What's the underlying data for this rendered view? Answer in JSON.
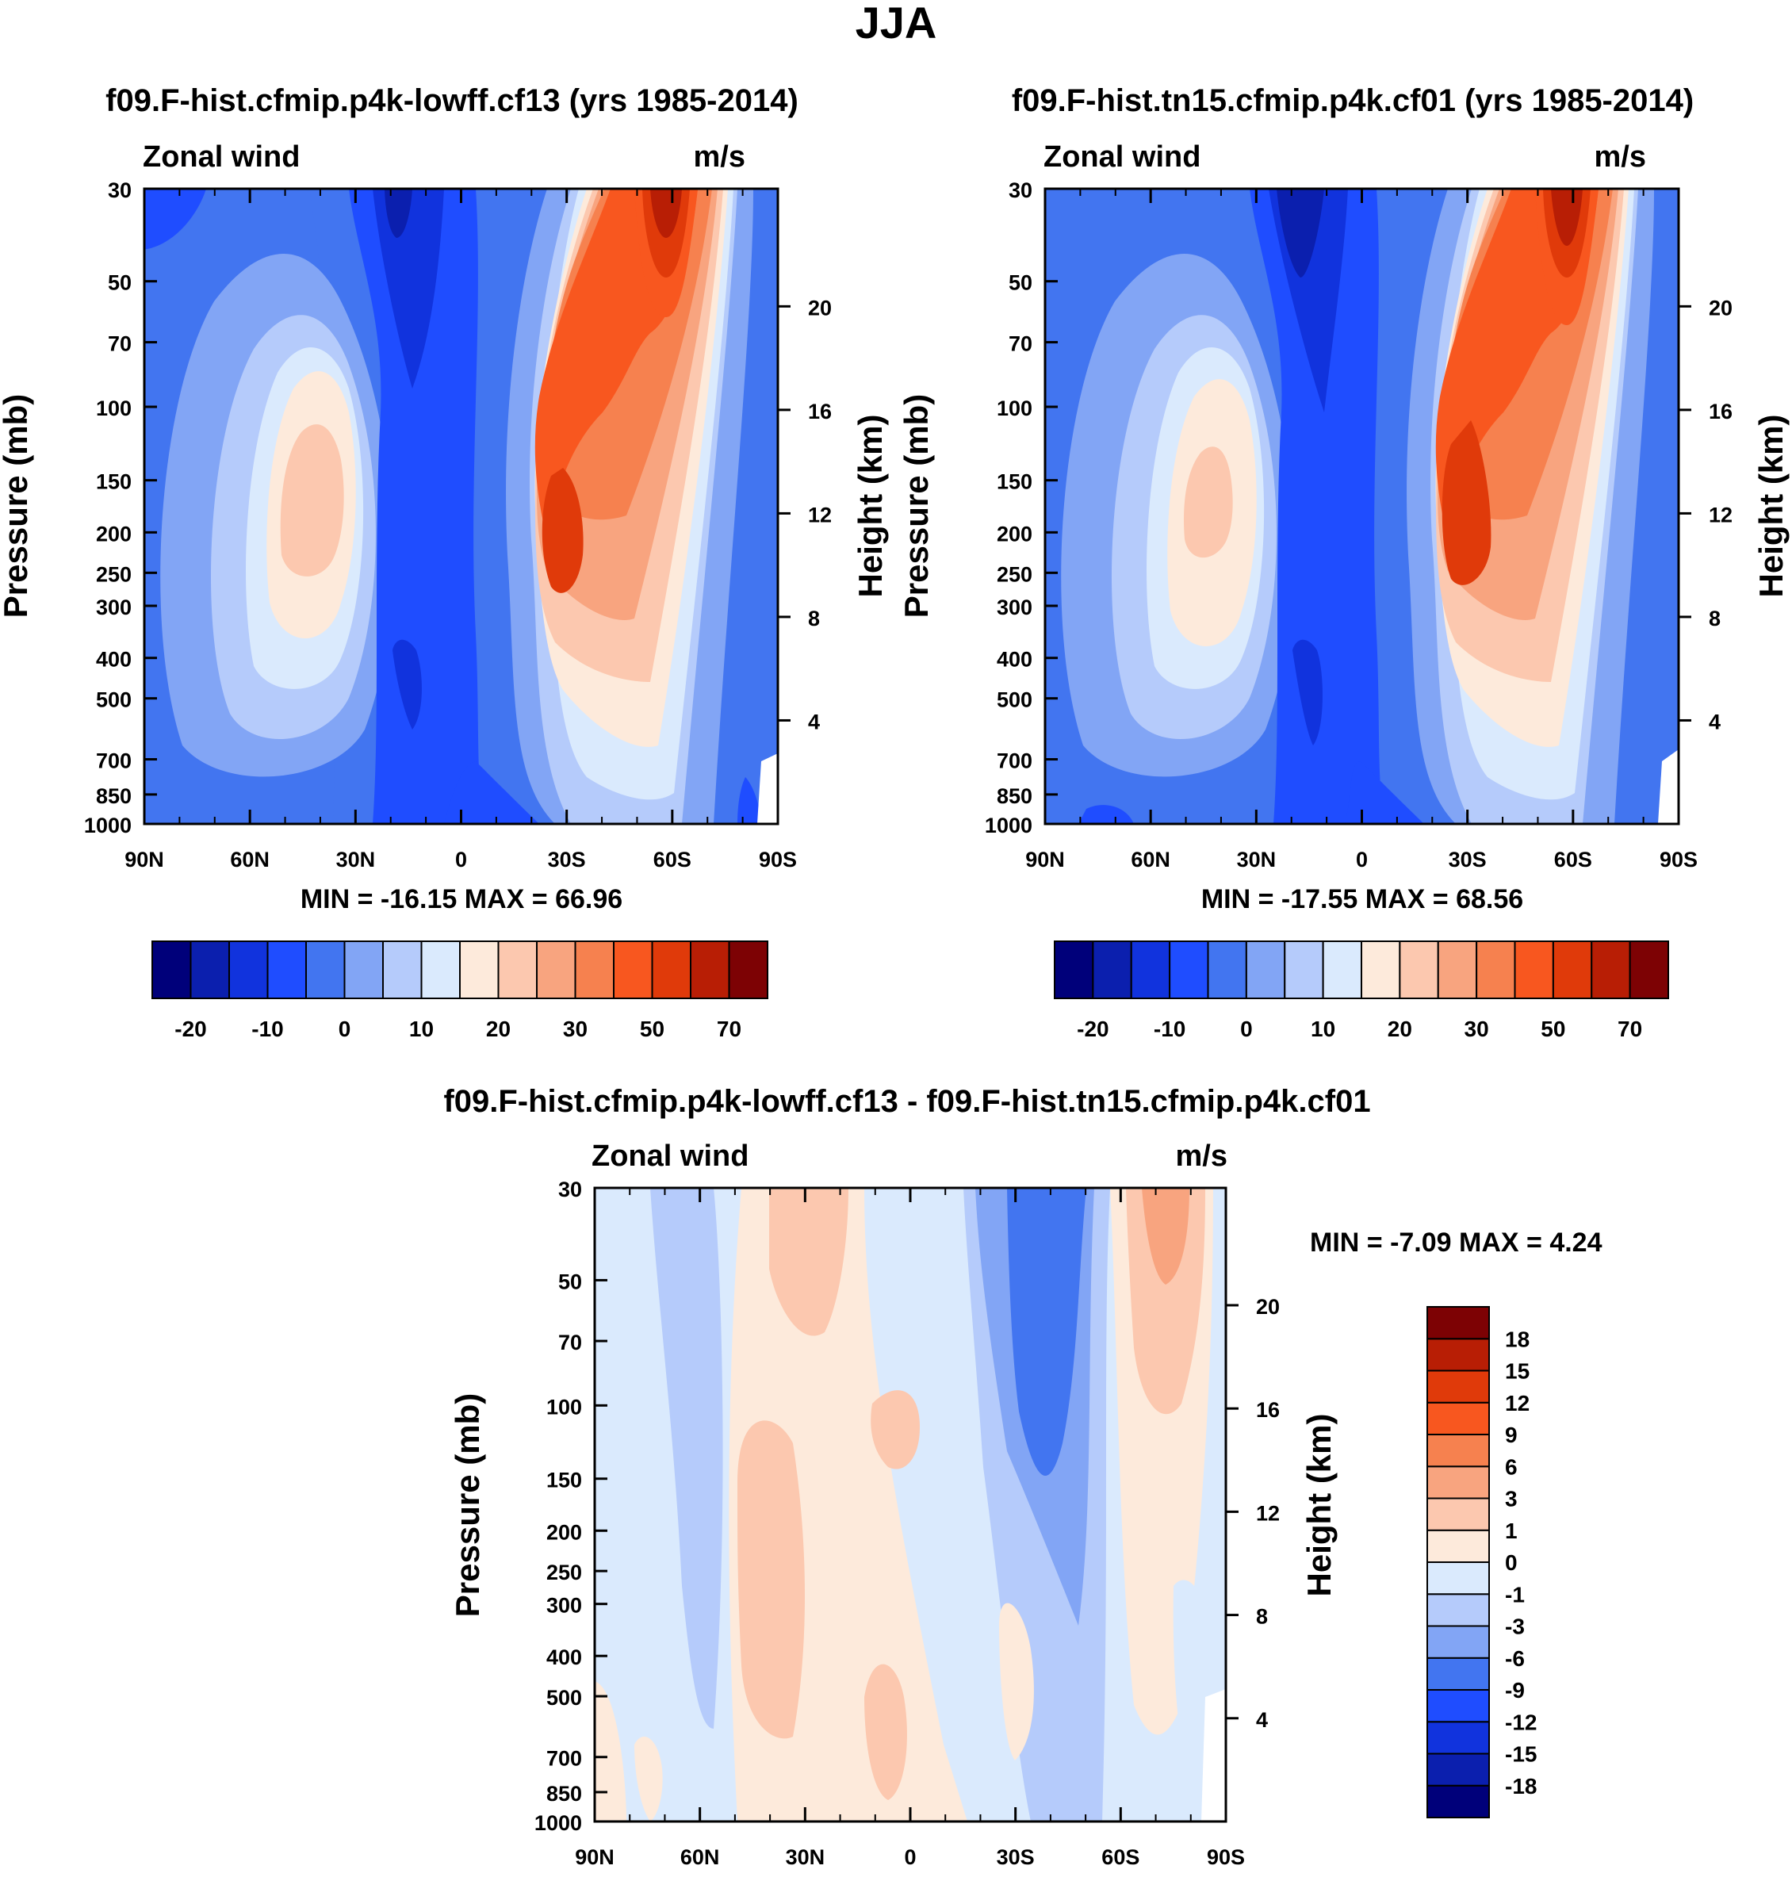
{
  "figure_title": "JJA",
  "panels": [
    {
      "title": "f09.F-hist.cfmip.p4k-lowff.cf13 (yrs 1985-2014)",
      "left_label": "Zonal wind",
      "right_label": "m/s",
      "ylabel": "Pressure (mb)",
      "ylabel_right": "Height (km)",
      "minmax": "MIN = -16.15  MAX =  66.96"
    },
    {
      "title": "f09.F-hist.tn15.cfmip.p4k.cf01 (yrs 1985-2014)",
      "left_label": "Zonal wind",
      "right_label": "m/s",
      "ylabel": "Pressure (mb)",
      "ylabel_right": "Height (km)",
      "minmax": "MIN = -17.55  MAX =  68.56"
    },
    {
      "title": "f09.F-hist.cfmip.p4k-lowff.cf13 - f09.F-hist.tn15.cfmip.p4k.cf01",
      "left_label": "Zonal wind",
      "right_label": "m/s",
      "ylabel": "Pressure (mb)",
      "ylabel_right": "Height (km)",
      "minmax": "MIN =  -7.09  MAX =   4.24"
    }
  ],
  "colorbar_main": {
    "colors": [
      "#00007a",
      "#0b1fae",
      "#1133dd",
      "#1f4dff",
      "#4275f0",
      "#82a5f5",
      "#b5cbfb",
      "#daeafd",
      "#fdeadb",
      "#fcc8af",
      "#f8a47f",
      "#f6814f",
      "#f8571f",
      "#e03a0a",
      "#b81e05",
      "#7d0204"
    ],
    "labels": [
      "-20",
      "-10",
      "0",
      "10",
      "20",
      "30",
      "50",
      "70"
    ]
  },
  "colorbar_diff": {
    "colors": [
      "#00007a",
      "#0b1fae",
      "#1133dd",
      "#1f4dff",
      "#4275f0",
      "#82a5f5",
      "#b5cbfb",
      "#daeafd",
      "#fdeadb",
      "#fcc8af",
      "#f8a47f",
      "#f6814f",
      "#f8571f",
      "#e03a0a",
      "#b81e05",
      "#7d0204"
    ],
    "labels": [
      "-18",
      "-15",
      "-12",
      "-9",
      "-6",
      "-3",
      "-1",
      "0",
      "1",
      "3",
      "6",
      "9",
      "12",
      "15",
      "18"
    ]
  },
  "chart_data": [
    {
      "type": "heatmap",
      "title": "f09.F-hist.cfmip.p4k-lowff.cf13 (yrs 1985-2014)",
      "variable": "Zonal wind",
      "units": "m/s",
      "xlabel": "",
      "ylabel": "Pressure (mb)",
      "ylabel_right": "Height (km)",
      "x_ticks": [
        "90N",
        "60N",
        "30N",
        "0",
        "30S",
        "60S",
        "90S"
      ],
      "y_ticks": [
        30,
        50,
        70,
        100,
        150,
        200,
        250,
        300,
        400,
        500,
        700,
        850,
        1000
      ],
      "y_ticks_right": [
        4,
        8,
        12,
        16,
        20
      ],
      "ylim": [
        1000,
        30
      ],
      "y_scale": "log",
      "min": -16.15,
      "max": 66.96,
      "levels": [
        -25,
        -20,
        -15,
        -10,
        -5,
        0,
        5,
        10,
        15,
        20,
        25,
        30,
        40,
        50,
        60,
        70
      ]
    },
    {
      "type": "heatmap",
      "title": "f09.F-hist.tn15.cfmip.p4k.cf01 (yrs 1985-2014)",
      "variable": "Zonal wind",
      "units": "m/s",
      "xlabel": "",
      "ylabel": "Pressure (mb)",
      "ylabel_right": "Height (km)",
      "x_ticks": [
        "90N",
        "60N",
        "30N",
        "0",
        "30S",
        "60S",
        "90S"
      ],
      "y_ticks": [
        30,
        50,
        70,
        100,
        150,
        200,
        250,
        300,
        400,
        500,
        700,
        850,
        1000
      ],
      "y_ticks_right": [
        4,
        8,
        12,
        16,
        20
      ],
      "ylim": [
        1000,
        30
      ],
      "y_scale": "log",
      "min": -17.55,
      "max": 68.56,
      "levels": [
        -25,
        -20,
        -15,
        -10,
        -5,
        0,
        5,
        10,
        15,
        20,
        25,
        30,
        40,
        50,
        60,
        70
      ]
    },
    {
      "type": "heatmap",
      "title": "f09.F-hist.cfmip.p4k-lowff.cf13 - f09.F-hist.tn15.cfmip.p4k.cf01",
      "variable": "Zonal wind",
      "units": "m/s",
      "xlabel": "",
      "ylabel": "Pressure (mb)",
      "ylabel_right": "Height (km)",
      "x_ticks": [
        "90N",
        "60N",
        "30N",
        "0",
        "30S",
        "60S",
        "90S"
      ],
      "y_ticks": [
        30,
        50,
        70,
        100,
        150,
        200,
        250,
        300,
        400,
        500,
        700,
        850,
        1000
      ],
      "y_ticks_right": [
        4,
        8,
        12,
        16,
        20
      ],
      "ylim": [
        1000,
        30
      ],
      "y_scale": "log",
      "min": -7.09,
      "max": 4.24,
      "levels": [
        -18,
        -15,
        -12,
        -9,
        -6,
        -3,
        -1,
        0,
        1,
        3,
        6,
        9,
        12,
        15,
        18
      ]
    }
  ]
}
